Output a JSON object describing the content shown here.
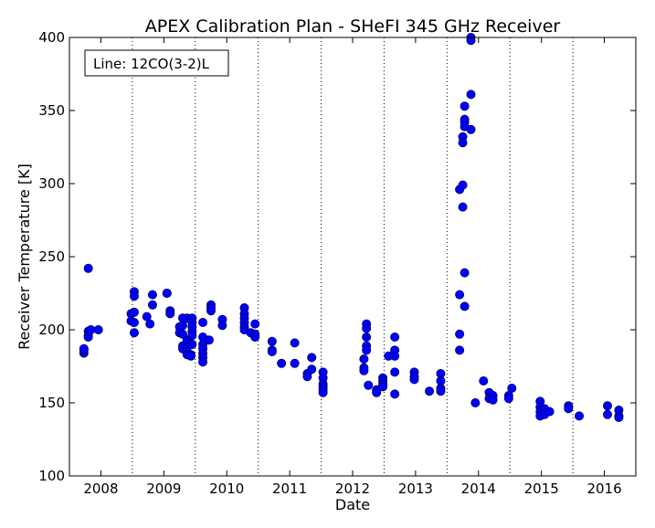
{
  "chart_data": {
    "type": "scatter",
    "title": "APEX Calibration Plan - SHeFI 345 GHz Receiver",
    "xlabel": "Date",
    "ylabel": "Receiver Temperature [K]",
    "annotation": "Line: 12CO(3-2)L",
    "xlim": [
      2007.5,
      2016.5
    ],
    "ylim": [
      100,
      400
    ],
    "x_ticks": [
      2008,
      2009,
      2010,
      2011,
      2012,
      2013,
      2014,
      2015,
      2016
    ],
    "x_tick_labels": [
      "2008",
      "2009",
      "2010",
      "2011",
      "2012",
      "2013",
      "2014",
      "2015",
      "2016"
    ],
    "y_ticks": [
      100,
      150,
      200,
      250,
      300,
      350,
      400
    ],
    "y_tick_labels": [
      "100",
      "150",
      "200",
      "250",
      "300",
      "350",
      "400"
    ],
    "vertical_dotted_lines": [
      2008.5,
      2009.5,
      2010.5,
      2011.5,
      2012.5,
      2013.5,
      2014.5,
      2015.5
    ],
    "marker_color": "#0000ff",
    "marker_edge_color": "#000080",
    "series": [
      {
        "points": [
          [
            2007.73,
            184
          ],
          [
            2007.73,
            186
          ],
          [
            2007.73,
            187
          ],
          [
            2007.8,
            242
          ],
          [
            2007.8,
            199
          ],
          [
            2007.8,
            196
          ],
          [
            2007.8,
            195
          ],
          [
            2007.84,
            200
          ],
          [
            2007.96,
            200
          ],
          [
            2008.48,
            211
          ],
          [
            2008.48,
            206
          ],
          [
            2008.53,
            226
          ],
          [
            2008.53,
            223
          ],
          [
            2008.53,
            212
          ],
          [
            2008.53,
            205
          ],
          [
            2008.53,
            198
          ],
          [
            2008.73,
            209
          ],
          [
            2008.78,
            204
          ],
          [
            2008.82,
            224
          ],
          [
            2008.82,
            217
          ],
          [
            2009.05,
            225
          ],
          [
            2009.05,
            225
          ],
          [
            2009.1,
            213
          ],
          [
            2009.1,
            211
          ],
          [
            2009.25,
            202
          ],
          [
            2009.25,
            198
          ],
          [
            2009.3,
            208
          ],
          [
            2009.3,
            203
          ],
          [
            2009.3,
            197
          ],
          [
            2009.3,
            189
          ],
          [
            2009.3,
            187
          ],
          [
            2009.37,
            208
          ],
          [
            2009.37,
            193
          ],
          [
            2009.37,
            191
          ],
          [
            2009.37,
            188
          ],
          [
            2009.37,
            185
          ],
          [
            2009.37,
            183
          ],
          [
            2009.43,
            183
          ],
          [
            2009.43,
            182
          ],
          [
            2009.45,
            208
          ],
          [
            2009.45,
            205
          ],
          [
            2009.45,
            202
          ],
          [
            2009.45,
            199
          ],
          [
            2009.45,
            196
          ],
          [
            2009.45,
            190
          ],
          [
            2009.62,
            205
          ],
          [
            2009.62,
            195
          ],
          [
            2009.62,
            190
          ],
          [
            2009.62,
            187
          ],
          [
            2009.62,
            184
          ],
          [
            2009.62,
            181
          ],
          [
            2009.62,
            178
          ],
          [
            2009.72,
            193
          ],
          [
            2009.75,
            217
          ],
          [
            2009.75,
            215
          ],
          [
            2009.75,
            213
          ],
          [
            2009.93,
            207
          ],
          [
            2009.93,
            203
          ],
          [
            2010.28,
            215
          ],
          [
            2010.28,
            211
          ],
          [
            2010.28,
            208
          ],
          [
            2010.28,
            205
          ],
          [
            2010.28,
            202
          ],
          [
            2010.28,
            200
          ],
          [
            2010.38,
            198
          ],
          [
            2010.45,
            204
          ],
          [
            2010.45,
            197
          ],
          [
            2010.45,
            195
          ],
          [
            2010.72,
            192
          ],
          [
            2010.72,
            186
          ],
          [
            2010.72,
            185
          ],
          [
            2010.87,
            177
          ],
          [
            2011.08,
            191
          ],
          [
            2011.08,
            177
          ],
          [
            2011.28,
            170
          ],
          [
            2011.28,
            168
          ],
          [
            2011.35,
            181
          ],
          [
            2011.35,
            173
          ],
          [
            2011.53,
            171
          ],
          [
            2011.53,
            167
          ],
          [
            2011.53,
            163
          ],
          [
            2011.53,
            161
          ],
          [
            2011.53,
            159
          ],
          [
            2011.53,
            157
          ],
          [
            2012.18,
            180
          ],
          [
            2012.18,
            174
          ],
          [
            2012.18,
            172
          ],
          [
            2012.22,
            204
          ],
          [
            2012.22,
            201
          ],
          [
            2012.22,
            195
          ],
          [
            2012.22,
            189
          ],
          [
            2012.22,
            186
          ],
          [
            2012.25,
            162
          ],
          [
            2012.38,
            159
          ],
          [
            2012.38,
            157
          ],
          [
            2012.48,
            167
          ],
          [
            2012.48,
            165
          ],
          [
            2012.48,
            163
          ],
          [
            2012.48,
            161
          ],
          [
            2012.57,
            182
          ],
          [
            2012.67,
            195
          ],
          [
            2012.67,
            186
          ],
          [
            2012.67,
            182
          ],
          [
            2012.67,
            171
          ],
          [
            2012.67,
            156
          ],
          [
            2012.98,
            171
          ],
          [
            2012.98,
            168
          ],
          [
            2012.98,
            166
          ],
          [
            2013.22,
            158
          ],
          [
            2013.4,
            170
          ],
          [
            2013.4,
            165
          ],
          [
            2013.4,
            160
          ],
          [
            2013.4,
            158
          ],
          [
            2013.7,
            296
          ],
          [
            2013.7,
            224
          ],
          [
            2013.7,
            197
          ],
          [
            2013.7,
            186
          ],
          [
            2013.75,
            332
          ],
          [
            2013.75,
            328
          ],
          [
            2013.75,
            299
          ],
          [
            2013.75,
            284
          ],
          [
            2013.78,
            353
          ],
          [
            2013.78,
            344
          ],
          [
            2013.78,
            342
          ],
          [
            2013.78,
            339
          ],
          [
            2013.78,
            239
          ],
          [
            2013.78,
            216
          ],
          [
            2013.88,
            400
          ],
          [
            2013.88,
            398
          ],
          [
            2013.88,
            361
          ],
          [
            2013.88,
            337
          ],
          [
            2013.95,
            150
          ],
          [
            2014.08,
            165
          ],
          [
            2014.17,
            157
          ],
          [
            2014.17,
            153
          ],
          [
            2014.23,
            155
          ],
          [
            2014.23,
            152
          ],
          [
            2014.48,
            155
          ],
          [
            2014.48,
            153
          ],
          [
            2014.53,
            160
          ],
          [
            2014.98,
            151
          ],
          [
            2014.98,
            147
          ],
          [
            2014.98,
            144
          ],
          [
            2014.98,
            141
          ],
          [
            2015.05,
            146
          ],
          [
            2015.05,
            142
          ],
          [
            2015.13,
            144
          ],
          [
            2015.43,
            148
          ],
          [
            2015.43,
            146
          ],
          [
            2015.6,
            141
          ],
          [
            2016.05,
            148
          ],
          [
            2016.05,
            142
          ],
          [
            2016.23,
            145
          ],
          [
            2016.23,
            141
          ],
          [
            2016.23,
            140
          ]
        ]
      }
    ]
  }
}
